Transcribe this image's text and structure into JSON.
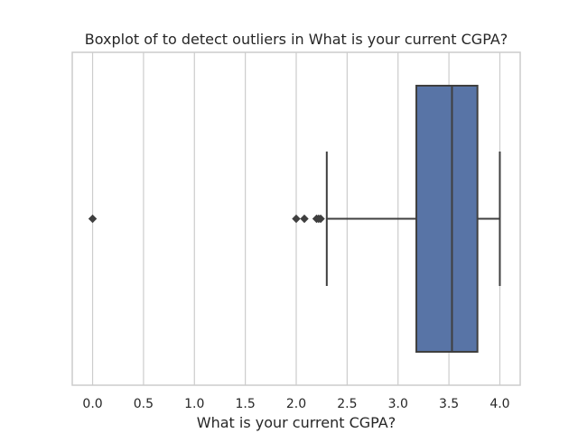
{
  "chart_data": {
    "type": "boxplot",
    "title": "Boxplot of to detect outliers in What is your current CGPA?",
    "xlabel": "What is your current CGPA?",
    "ylabel": "",
    "orientation": "horizontal",
    "xlim": [
      -0.2,
      4.2
    ],
    "xticks": [
      0.0,
      0.5,
      1.0,
      1.5,
      2.0,
      2.5,
      3.0,
      3.5,
      4.0
    ],
    "xtick_labels": [
      "0.0",
      "0.5",
      "1.0",
      "1.5",
      "2.0",
      "2.5",
      "3.0",
      "3.5",
      "4.0"
    ],
    "grid": true,
    "box": {
      "whisker_low": 2.3,
      "q1": 3.18,
      "median": 3.53,
      "q3": 3.78,
      "whisker_high": 4.0,
      "outliers": [
        0.0,
        2.0,
        2.08,
        2.2,
        2.22,
        2.24
      ],
      "color": "#5874a6",
      "edge_color": "#3f3f3f"
    }
  }
}
